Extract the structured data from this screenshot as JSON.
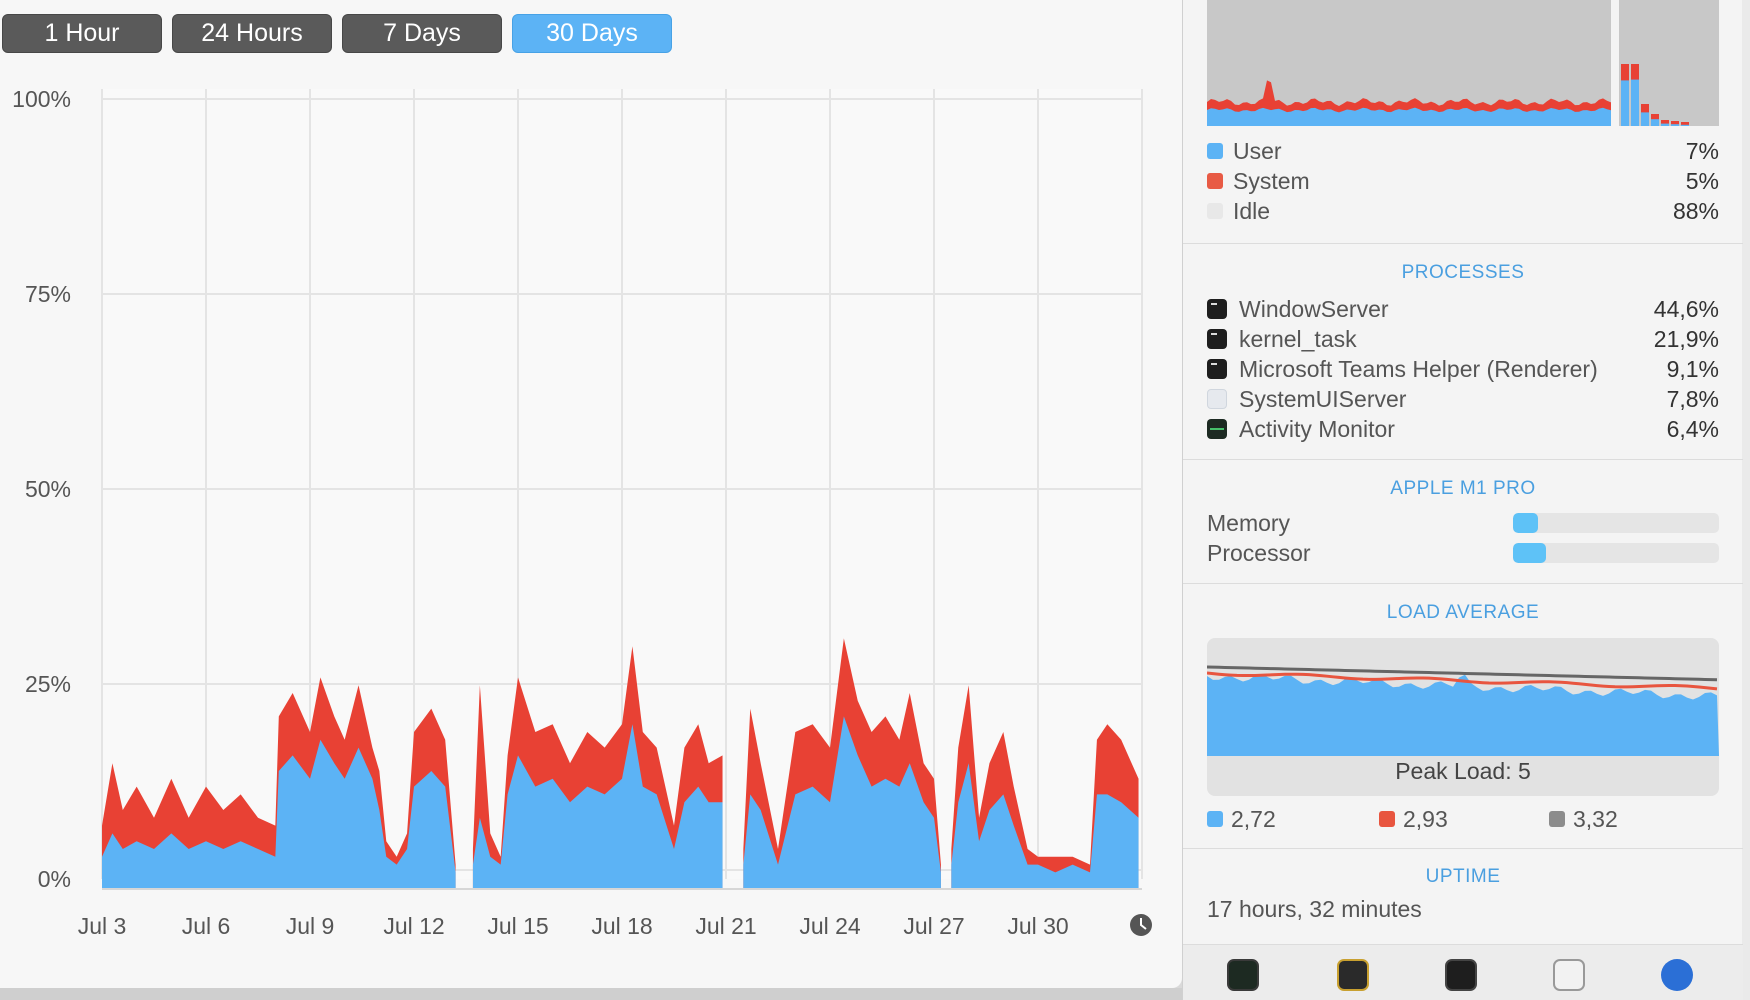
{
  "range_buttons": [
    {
      "label": "1 Hour",
      "active": false
    },
    {
      "label": "24 Hours",
      "active": false
    },
    {
      "label": "7 Days",
      "active": false
    },
    {
      "label": "30 Days",
      "active": true
    }
  ],
  "chart_data": {
    "type": "area",
    "y_tick_labels": [
      "100%",
      "75%",
      "50%",
      "25%",
      "0%"
    ],
    "ylim": [
      0,
      100
    ],
    "x_tick_labels": [
      "Jul 3",
      "Jul 6",
      "Jul 9",
      "Jul 12",
      "Jul 15",
      "Jul 18",
      "Jul 21",
      "Jul 24",
      "Jul 27",
      "Jul 30"
    ],
    "x_days": [
      3,
      6,
      9,
      12,
      15,
      18,
      21,
      24,
      27,
      30,
      33
    ],
    "series": [
      {
        "name": "User",
        "color": "#5cb3f5",
        "values": [
          [
            3.0,
            4
          ],
          [
            3.3,
            7
          ],
          [
            3.6,
            5
          ],
          [
            4.0,
            6
          ],
          [
            4.5,
            5
          ],
          [
            5.0,
            7
          ],
          [
            5.5,
            5
          ],
          [
            6.0,
            6
          ],
          [
            6.5,
            5
          ],
          [
            7.0,
            6
          ],
          [
            7.5,
            5
          ],
          [
            8.0,
            4
          ],
          [
            8.1,
            15
          ],
          [
            8.5,
            17
          ],
          [
            9.0,
            14
          ],
          [
            9.3,
            19
          ],
          [
            9.7,
            16
          ],
          [
            10.0,
            14
          ],
          [
            10.4,
            18
          ],
          [
            10.8,
            14
          ],
          [
            11.0,
            10
          ],
          [
            11.2,
            4
          ],
          [
            11.5,
            3
          ],
          [
            11.8,
            5
          ],
          [
            12.0,
            13
          ],
          [
            12.5,
            15
          ],
          [
            12.9,
            13
          ],
          [
            13.2,
            2
          ],
          [
            13.7,
            3
          ],
          [
            13.9,
            9
          ],
          [
            14.2,
            4
          ],
          [
            14.5,
            3
          ],
          [
            14.7,
            12
          ],
          [
            15.0,
            17
          ],
          [
            15.5,
            13
          ],
          [
            16.0,
            14
          ],
          [
            16.5,
            11
          ],
          [
            17.0,
            13
          ],
          [
            17.5,
            12
          ],
          [
            18.0,
            14
          ],
          [
            18.3,
            21
          ],
          [
            18.6,
            13
          ],
          [
            19.0,
            12
          ],
          [
            19.5,
            5
          ],
          [
            19.8,
            11
          ],
          [
            20.2,
            13
          ],
          [
            20.5,
            11
          ],
          [
            20.9,
            11
          ],
          [
            21.5,
            3
          ],
          [
            21.7,
            12
          ],
          [
            22.0,
            10
          ],
          [
            22.5,
            3
          ],
          [
            23.0,
            12
          ],
          [
            23.5,
            13
          ],
          [
            24.0,
            11
          ],
          [
            24.4,
            22
          ],
          [
            24.8,
            17
          ],
          [
            25.2,
            13
          ],
          [
            25.6,
            14
          ],
          [
            26.0,
            13
          ],
          [
            26.3,
            16
          ],
          [
            26.7,
            11
          ],
          [
            27.0,
            9
          ],
          [
            27.2,
            2
          ],
          [
            27.5,
            3
          ],
          [
            27.7,
            11
          ],
          [
            28.0,
            16
          ],
          [
            28.3,
            6
          ],
          [
            28.6,
            10
          ],
          [
            29.0,
            12
          ],
          [
            29.3,
            8
          ],
          [
            29.7,
            3
          ],
          [
            30.0,
            3
          ],
          [
            30.5,
            2
          ],
          [
            31.0,
            3
          ],
          [
            31.5,
            2
          ],
          [
            31.7,
            12
          ],
          [
            32.0,
            12
          ],
          [
            32.4,
            11
          ],
          [
            32.9,
            9
          ]
        ]
      },
      {
        "name": "System",
        "color": "#e84134",
        "values": [
          [
            3.0,
            8
          ],
          [
            3.3,
            16
          ],
          [
            3.6,
            10
          ],
          [
            4.0,
            13
          ],
          [
            4.5,
            9
          ],
          [
            5.0,
            14
          ],
          [
            5.5,
            9
          ],
          [
            6.0,
            13
          ],
          [
            6.5,
            10
          ],
          [
            7.0,
            12
          ],
          [
            7.5,
            9
          ],
          [
            8.0,
            8
          ],
          [
            8.1,
            22
          ],
          [
            8.5,
            25
          ],
          [
            9.0,
            20
          ],
          [
            9.3,
            27
          ],
          [
            9.7,
            22
          ],
          [
            10.0,
            19
          ],
          [
            10.4,
            26
          ],
          [
            10.8,
            18
          ],
          [
            11.0,
            15
          ],
          [
            11.2,
            6
          ],
          [
            11.5,
            4
          ],
          [
            11.8,
            7
          ],
          [
            12.0,
            20
          ],
          [
            12.5,
            23
          ],
          [
            12.9,
            19
          ],
          [
            13.2,
            3
          ],
          [
            13.7,
            5
          ],
          [
            13.9,
            26
          ],
          [
            14.2,
            7
          ],
          [
            14.5,
            4
          ],
          [
            14.7,
            17
          ],
          [
            15.0,
            27
          ],
          [
            15.5,
            20
          ],
          [
            16.0,
            21
          ],
          [
            16.5,
            16
          ],
          [
            17.0,
            20
          ],
          [
            17.5,
            18
          ],
          [
            18.0,
            21
          ],
          [
            18.3,
            31
          ],
          [
            18.6,
            20
          ],
          [
            19.0,
            18
          ],
          [
            19.5,
            8
          ],
          [
            19.8,
            18
          ],
          [
            20.2,
            21
          ],
          [
            20.5,
            16
          ],
          [
            20.9,
            17
          ],
          [
            21.5,
            5
          ],
          [
            21.7,
            23
          ],
          [
            22.0,
            16
          ],
          [
            22.5,
            5
          ],
          [
            23.0,
            20
          ],
          [
            23.5,
            21
          ],
          [
            24.0,
            18
          ],
          [
            24.4,
            32
          ],
          [
            24.8,
            24
          ],
          [
            25.2,
            20
          ],
          [
            25.6,
            22
          ],
          [
            26.0,
            19
          ],
          [
            26.3,
            25
          ],
          [
            26.7,
            16
          ],
          [
            27.0,
            14
          ],
          [
            27.2,
            3
          ],
          [
            27.5,
            5
          ],
          [
            27.7,
            18
          ],
          [
            28.0,
            26
          ],
          [
            28.3,
            9
          ],
          [
            28.6,
            16
          ],
          [
            29.0,
            20
          ],
          [
            29.3,
            13
          ],
          [
            29.7,
            5
          ],
          [
            30.0,
            4
          ],
          [
            30.5,
            4
          ],
          [
            31.0,
            4
          ],
          [
            31.5,
            3
          ],
          [
            31.7,
            19
          ],
          [
            32.0,
            21
          ],
          [
            32.4,
            19
          ],
          [
            32.9,
            14
          ]
        ]
      }
    ],
    "gaps": [
      [
        13.2,
        13.7
      ],
      [
        20.9,
        21.5
      ],
      [
        27.2,
        27.5
      ]
    ]
  },
  "cpu_legend": [
    {
      "name": "User",
      "value": "7%",
      "color": "#5cb3f5"
    },
    {
      "name": "System",
      "value": "5%",
      "color": "#e85a44"
    },
    {
      "name": "Idle",
      "value": "88%",
      "color": "#e8e8e8"
    }
  ],
  "processes_title": "PROCESSES",
  "processes": [
    {
      "name": "WindowServer",
      "value": "44,6%",
      "icon": "terminal-icon"
    },
    {
      "name": "kernel_task",
      "value": "21,9%",
      "icon": "terminal-icon"
    },
    {
      "name": "Microsoft Teams Helper (Renderer)",
      "value": "9,1%",
      "icon": "terminal-icon"
    },
    {
      "name": "SystemUIServer",
      "value": "7,8%",
      "icon": "grid-icon"
    },
    {
      "name": "Activity Monitor",
      "value": "6,4%",
      "icon": "activity-monitor-icon"
    }
  ],
  "chip_title": "APPLE M1 PRO",
  "chip_bars": [
    {
      "label": "Memory",
      "fraction": 0.12
    },
    {
      "label": "Processor",
      "fraction": 0.16
    }
  ],
  "load_title": "LOAD AVERAGE",
  "peak_load": "Peak Load: 5",
  "load_legend": [
    {
      "value": "2,72",
      "color": "#5cb3f5"
    },
    {
      "value": "2,93",
      "color": "#e8553f"
    },
    {
      "value": "3,32",
      "color": "#8c8c8c"
    }
  ],
  "uptime_title": "UPTIME",
  "uptime_value": "17 hours, 32 minutes",
  "dock_icons": [
    "activity-monitor-icon",
    "console-icon",
    "terminal-icon",
    "system-info-icon",
    "disk-utility-icon"
  ]
}
